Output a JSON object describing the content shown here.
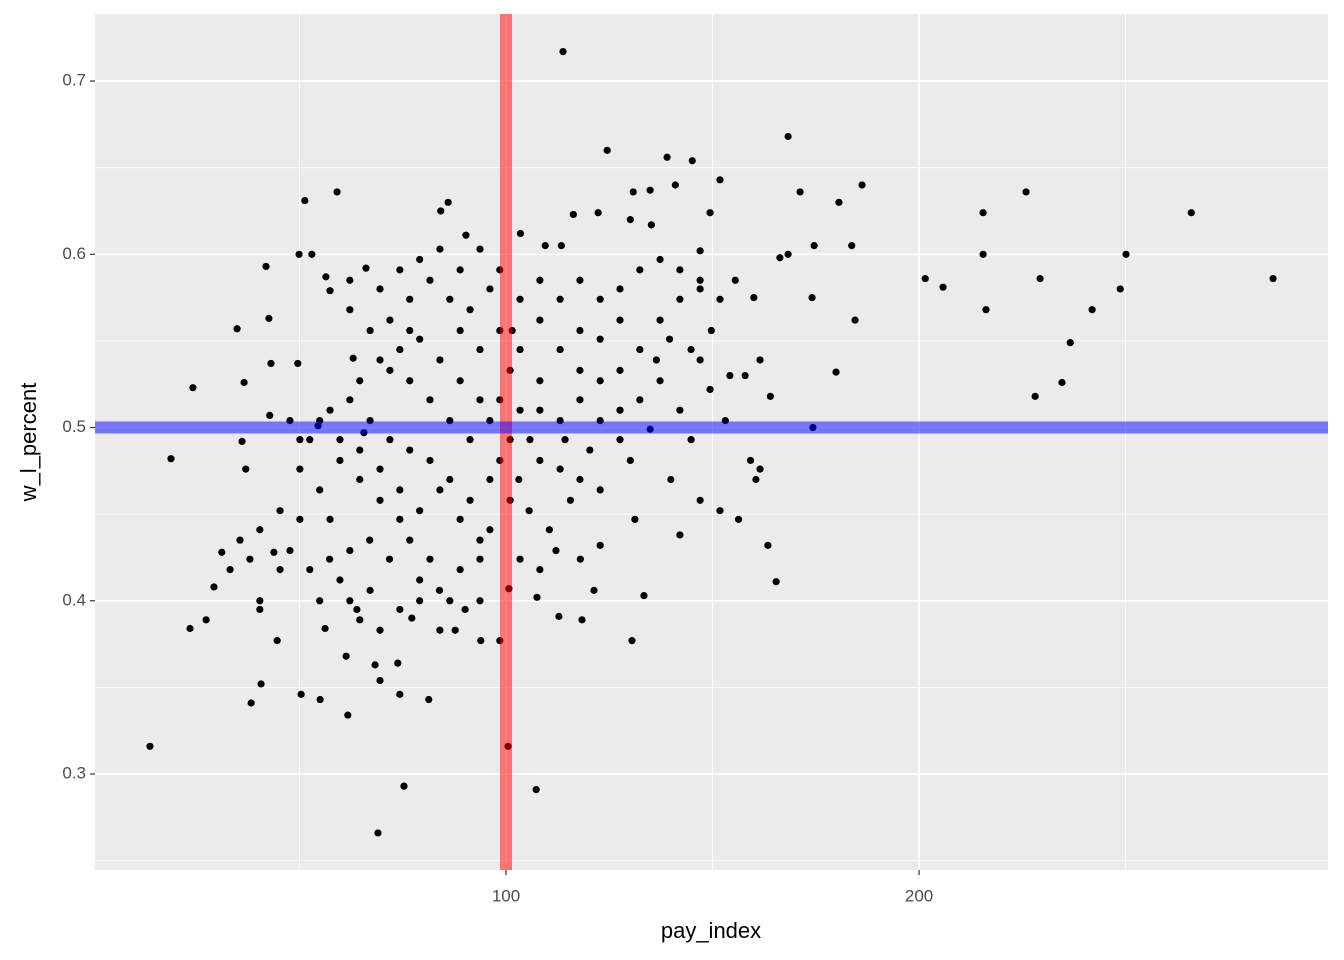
{
  "chart_data": {
    "type": "scatter",
    "x_label": "pay_index",
    "y_label": "w_l_percent",
    "color": "#000000",
    "xlim": [
      0.5,
      299
    ],
    "ylim": [
      0.2446,
      0.7387
    ],
    "xticks": [
      100,
      200
    ],
    "yticks": [
      0.3,
      0.4,
      0.5,
      0.6,
      0.7
    ],
    "grid": true,
    "vline": {
      "value": 100,
      "color": "#ff0000"
    },
    "hline": {
      "value": 0.5,
      "color": "#0000ff"
    },
    "x": [
      13.8,
      18.9,
      23.5,
      24.2,
      27.4,
      29.3,
      31.2,
      34.9,
      36.1,
      36.6,
      37.0,
      38.3,
      40.7,
      41.9,
      42.6,
      43.1,
      43.8,
      44.6,
      49.9,
      49.6,
      50.4,
      51.3,
      53.0,
      54.5,
      55.0,
      59.1,
      56.4,
      61.7,
      61.3,
      63.0,
      65.6,
      66.1,
      69.0,
      75.3,
      74.3,
      81.3,
      84.2,
      86.0,
      90.3,
      93.9,
      100.5,
      107.3,
      113.8,
      124.5,
      145.1,
      168.3,
      186.2,
      180.6,
      171.2,
      183.7,
      174.6,
      168.3,
      201.5,
      205.8,
      215.5,
      215.5,
      216.2,
      225.9,
      229.3,
      228.1,
      234.6,
      236.6,
      241.9,
      248.7,
      250.1,
      265.9,
      285.7,
      184.5,
      179.9,
      174.3,
      174.1,
      165.4,
      163.4,
      166.3,
      160.5,
      156.3,
      151.8,
      149.4,
      139.0,
      133.4,
      130.5,
      121.3,
      118.4,
      112.8,
      100.7,
      107.5,
      93.7,
      90.1,
      87.7,
      77.2,
      69.5,
      63.9,
      56.2,
      68.3,
      73.8,
      101.5,
      103.5,
      109.5,
      113.4,
      116.3,
      122.3,
      130.1,
      135.2,
      130.8,
      134.9,
      141.0,
      147.0,
      155.5,
      160.0,
      151.8,
      147.0,
      142.1,
      137.3,
      149.7,
      144.8,
      136.4,
      127.6,
      122.8,
      117.9,
      113.1,
      108.2,
      108.2,
      114.3,
      120.3,
      127.6,
      134.9,
      142.1,
      149.4,
      154.2,
      144.8,
      139.9,
      130.1,
      122.8,
      115.6,
      110.5,
      105.6,
      103.1,
      147.0,
      151.8,
      142.1,
      131.2,
      122.8,
      118.0,
      112.1,
      86.4,
      81.6,
      76.7,
      74.3,
      69.5,
      64.6,
      59.8,
      54.9,
      50.1,
      45.3,
      40.4,
      38.0,
      33.2,
      47.7,
      52.5,
      57.3,
      62.2,
      67.0,
      71.8,
      79.1,
      83.9,
      88.9,
      93.7,
      96.1,
      91.3,
      86.4,
      81.6,
      76.7,
      71.9,
      67.1,
      62.2,
      57.4,
      52.5,
      57.4,
      62.2,
      67.1,
      74.3,
      79.1,
      84.0,
      64.6,
      69.5,
      74.3,
      79.1,
      84.0,
      88.9,
      93.7,
      96.1,
      91.3,
      86.4,
      81.6,
      76.7,
      71.9,
      67.1,
      62.2,
      57.4,
      62.2,
      69.5,
      76.7,
      81.6,
      86.4,
      91.3,
      96.1,
      98.5,
      93.7,
      88.9,
      84.0,
      79.1,
      74.3,
      71.9,
      76.7,
      88.9,
      93.7,
      98.5,
      103.4,
      108.2,
      113.1,
      117.9,
      122.8,
      127.6,
      132.4,
      137.3,
      142.1,
      147.0,
      127.6,
      122.8,
      117.9,
      108.2,
      103.4,
      101.0,
      98.5,
      101.0,
      98.5,
      101.0,
      96.1,
      103.4,
      105.8,
      108.2,
      113.1,
      117.9,
      113.1,
      117.9,
      122.8,
      127.6,
      132.4,
      137.3,
      132.4,
      139.6,
      147.0,
      161.5,
      157.9,
      164.0,
      153.1,
      159.2,
      161.5,
      42.8,
      47.7,
      50.1,
      54.9,
      59.8,
      64.6,
      69.5,
      74.3,
      79.1,
      84.0,
      88.9,
      93.7,
      103.4,
      108.2,
      50.1,
      45.3,
      40.4,
      35.6,
      40.4,
      54.9,
      59.8,
      64.6,
      69.5,
      98.5
    ],
    "values": [
      0.316,
      0.482,
      0.384,
      0.523,
      0.389,
      0.408,
      0.428,
      0.557,
      0.492,
      0.526,
      0.476,
      0.341,
      0.352,
      0.593,
      0.563,
      0.537,
      0.428,
      0.377,
      0.6,
      0.537,
      0.346,
      0.631,
      0.6,
      0.501,
      0.343,
      0.636,
      0.587,
      0.334,
      0.368,
      0.54,
      0.497,
      0.592,
      0.266,
      0.293,
      0.346,
      0.343,
      0.625,
      0.63,
      0.611,
      0.377,
      0.316,
      0.291,
      0.717,
      0.66,
      0.654,
      0.668,
      0.64,
      0.63,
      0.636,
      0.605,
      0.605,
      0.6,
      0.586,
      0.581,
      0.624,
      0.6,
      0.568,
      0.636,
      0.586,
      0.518,
      0.526,
      0.549,
      0.568,
      0.58,
      0.6,
      0.624,
      0.586,
      0.562,
      0.532,
      0.5,
      0.575,
      0.411,
      0.432,
      0.598,
      0.47,
      0.447,
      0.643,
      0.624,
      0.656,
      0.403,
      0.377,
      0.406,
      0.389,
      0.391,
      0.407,
      0.402,
      0.4,
      0.395,
      0.383,
      0.39,
      0.383,
      0.395,
      0.384,
      0.363,
      0.364,
      0.556,
      0.612,
      0.605,
      0.605,
      0.623,
      0.624,
      0.62,
      0.617,
      0.636,
      0.637,
      0.64,
      0.602,
      0.585,
      0.575,
      0.574,
      0.58,
      0.574,
      0.562,
      0.556,
      0.545,
      0.539,
      0.533,
      0.527,
      0.533,
      0.545,
      0.527,
      0.51,
      0.493,
      0.487,
      0.51,
      0.499,
      0.51,
      0.522,
      0.53,
      0.493,
      0.47,
      0.481,
      0.464,
      0.458,
      0.441,
      0.452,
      0.47,
      0.458,
      0.452,
      0.438,
      0.447,
      0.432,
      0.424,
      0.429,
      0.4,
      0.424,
      0.435,
      0.447,
      0.458,
      0.47,
      0.481,
      0.464,
      0.476,
      0.452,
      0.441,
      0.424,
      0.418,
      0.429,
      0.418,
      0.424,
      0.429,
      0.435,
      0.424,
      0.412,
      0.406,
      0.418,
      0.424,
      0.441,
      0.458,
      0.47,
      0.481,
      0.487,
      0.493,
      0.504,
      0.516,
      0.51,
      0.493,
      0.447,
      0.4,
      0.406,
      0.395,
      0.4,
      0.383,
      0.527,
      0.539,
      0.545,
      0.551,
      0.539,
      0.527,
      0.516,
      0.504,
      0.493,
      0.504,
      0.516,
      0.527,
      0.533,
      0.556,
      0.568,
      0.579,
      0.585,
      0.58,
      0.574,
      0.585,
      0.574,
      0.568,
      0.58,
      0.591,
      0.603,
      0.591,
      0.603,
      0.597,
      0.591,
      0.562,
      0.556,
      0.556,
      0.545,
      0.556,
      0.574,
      0.585,
      0.574,
      0.585,
      0.574,
      0.58,
      0.591,
      0.597,
      0.591,
      0.585,
      0.562,
      0.551,
      0.556,
      0.562,
      0.545,
      0.533,
      0.516,
      0.493,
      0.481,
      0.458,
      0.47,
      0.51,
      0.493,
      0.481,
      0.476,
      0.47,
      0.504,
      0.516,
      0.504,
      0.493,
      0.516,
      0.527,
      0.545,
      0.551,
      0.539,
      0.539,
      0.53,
      0.518,
      0.504,
      0.481,
      0.476,
      0.507,
      0.504,
      0.493,
      0.504,
      0.493,
      0.487,
      0.476,
      0.464,
      0.452,
      0.464,
      0.447,
      0.435,
      0.424,
      0.418,
      0.447,
      0.418,
      0.395,
      0.435,
      0.4,
      0.4,
      0.412,
      0.389,
      0.354,
      0.377
    ]
  }
}
